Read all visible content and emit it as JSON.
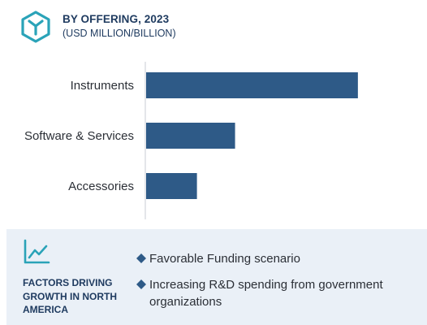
{
  "header": {
    "title": "BY OFFERING, 2023",
    "subtitle": "(USD MILLION/BILLION)",
    "logo_icon": "hexagon-y-logo-icon"
  },
  "chart_data": {
    "type": "bar",
    "orientation": "horizontal",
    "categories": [
      "Instruments",
      "Software & Services",
      "Accessories"
    ],
    "values": [
      100,
      42,
      24
    ],
    "xlim": [
      0,
      115
    ],
    "bar_color": "#2e5a87",
    "grid": false,
    "legend": "none",
    "title": "BY OFFERING, 2023",
    "xlabel": "",
    "ylabel": ""
  },
  "drivers": {
    "icon": "trend-chart-icon",
    "heading": "FACTORS DRIVING GROWTH IN NORTH AMERICA",
    "bullet_icon": "diamond-bullet-icon",
    "bullet_color": "#2e5a87",
    "items": [
      "Favorable Funding scenario",
      "Increasing R&D spending from government organizations"
    ]
  },
  "colors": {
    "accent": "#2e5a87",
    "panel_bg": "#eaf0f7",
    "heading": "#1e3a5f"
  }
}
